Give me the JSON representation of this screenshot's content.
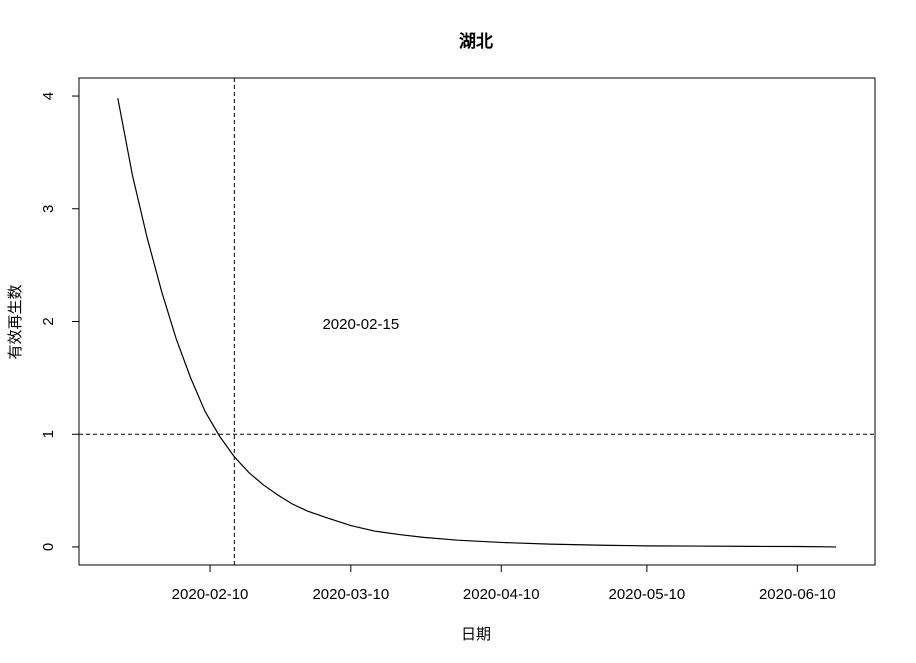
{
  "chart_data": {
    "type": "line",
    "title": "湖北",
    "xlabel": "日期",
    "ylabel": "有效再生数",
    "x_ticks": [
      "2020-02-10",
      "2020-03-10",
      "2020-04-10",
      "2020-05-10",
      "2020-06-10"
    ],
    "y_ticks": [
      "0",
      "1",
      "2",
      "3",
      "4"
    ],
    "xlim": [
      "2020-01-14",
      "2020-06-26"
    ],
    "ylim": [
      -0.16,
      4.16
    ],
    "series": [
      {
        "x": [
          "2020-01-22",
          "2020-01-25",
          "2020-01-28",
          "2020-01-31",
          "2020-02-03",
          "2020-02-06",
          "2020-02-09",
          "2020-02-12",
          "2020-02-15",
          "2020-02-18",
          "2020-02-21",
          "2020-02-24",
          "2020-02-27",
          "2020-03-01",
          "2020-03-05",
          "2020-03-10",
          "2020-03-15",
          "2020-03-20",
          "2020-03-25",
          "2020-04-01",
          "2020-04-10",
          "2020-04-20",
          "2020-05-01",
          "2020-05-10",
          "2020-05-20",
          "2020-06-01",
          "2020-06-10",
          "2020-06-18"
        ],
        "y": [
          3.98,
          3.3,
          2.75,
          2.27,
          1.85,
          1.5,
          1.2,
          0.98,
          0.8,
          0.66,
          0.55,
          0.46,
          0.38,
          0.32,
          0.26,
          0.19,
          0.14,
          0.11,
          0.085,
          0.06,
          0.04,
          0.025,
          0.015,
          0.01,
          0.008,
          0.005,
          0.004,
          0.0
        ]
      }
    ],
    "ref_lines": {
      "h": 1,
      "v": "2020-02-15"
    },
    "annotations": [
      {
        "text": "2020-02-15",
        "x": "2020-03-10",
        "y": 1.98
      }
    ]
  }
}
